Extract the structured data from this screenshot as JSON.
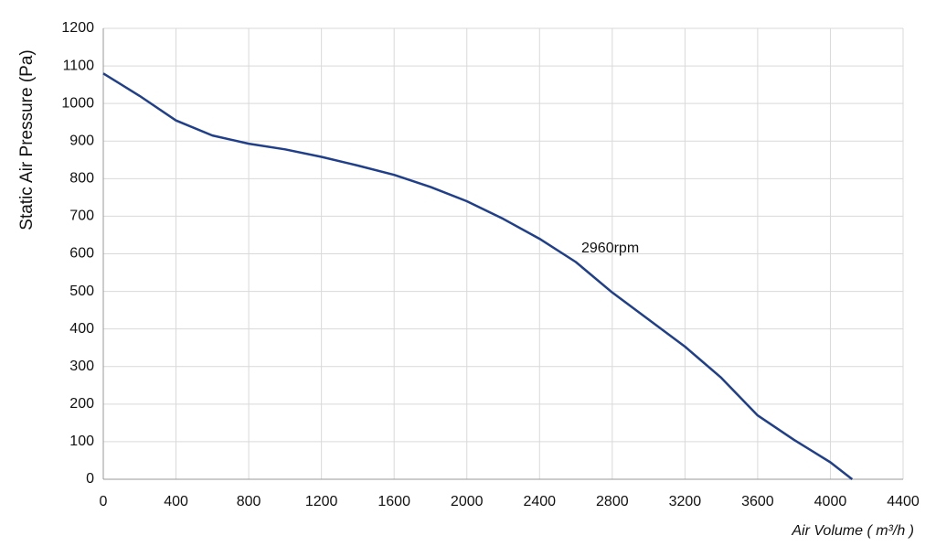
{
  "chart_data": {
    "type": "line",
    "x_label": "Air Volume ( m³/h )",
    "y_label": "Static Air Pressure  (Pa)",
    "annotation": "2960rpm",
    "x": [
      0,
      200,
      400,
      600,
      800,
      1000,
      1200,
      1400,
      1600,
      1800,
      2000,
      2200,
      2400,
      2600,
      2800,
      3000,
      3200,
      3400,
      3600,
      3800,
      4000,
      4120
    ],
    "series": [
      {
        "name": "2960rpm",
        "color": "#1f3f8a",
        "values": [
          1080,
          1020,
          955,
          915,
          893,
          878,
          858,
          835,
          810,
          778,
          740,
          693,
          640,
          578,
          497,
          425,
          353,
          270,
          170,
          105,
          45,
          0
        ]
      }
    ],
    "xlim": [
      0,
      4400
    ],
    "ylim": [
      0,
      1200
    ],
    "xticks": [
      0,
      400,
      800,
      1200,
      1600,
      2000,
      2400,
      2800,
      3200,
      3600,
      4000,
      4400
    ],
    "yticks": [
      0,
      100,
      200,
      300,
      400,
      500,
      600,
      700,
      800,
      900,
      1000,
      1100,
      1200
    ],
    "grid": true
  }
}
